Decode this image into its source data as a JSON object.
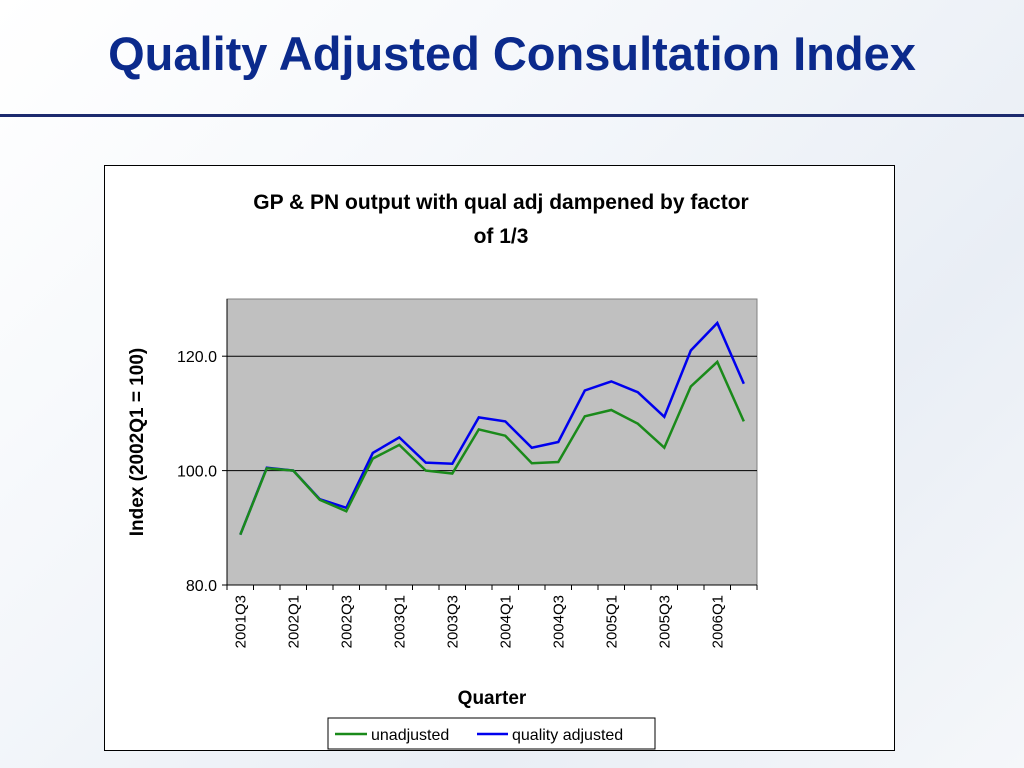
{
  "slide": {
    "title": "Quality Adjusted Consultation Index"
  },
  "colors": {
    "title": "#0b2a8c",
    "plot_background": "#c0c0c0",
    "unadjusted": "#1a8a1a",
    "quality_adjusted": "#0000ee"
  },
  "chart_data": {
    "type": "line",
    "title": "GP & PN output with qual adj dampened by factor of 1/3",
    "title_lines": [
      "GP & PN output with qual adj dampened by factor",
      "of 1/3"
    ],
    "xlabel": "Quarter",
    "ylabel": "Index (2002Q1 = 100)",
    "ylim": [
      80,
      130
    ],
    "yticks": [
      "80.0",
      "100.0",
      "120.0"
    ],
    "grid": true,
    "legend": "bottom",
    "x": [
      "2001Q3",
      "2001Q4",
      "2002Q1",
      "2002Q2",
      "2002Q3",
      "2002Q4",
      "2003Q1",
      "2003Q2",
      "2003Q3",
      "2003Q4",
      "2004Q1",
      "2004Q2",
      "2004Q3",
      "2004Q4",
      "2005Q1",
      "2005Q2",
      "2005Q3",
      "2005Q4",
      "2006Q1",
      "2006Q2"
    ],
    "xtick_labels": [
      "2001Q3",
      "",
      "2002Q1",
      "",
      "2002Q3",
      "",
      "2003Q1",
      "",
      "2003Q3",
      "",
      "2004Q1",
      "",
      "2004Q3",
      "",
      "2005Q1",
      "",
      "2005Q3",
      "",
      "2006Q1",
      ""
    ],
    "series": [
      {
        "name": "unadjusted",
        "values": [
          88.8,
          100.4,
          100.0,
          94.9,
          92.9,
          102.1,
          104.5,
          100.0,
          99.5,
          107.2,
          106.1,
          101.3,
          101.5,
          109.5,
          110.6,
          108.2,
          104.0,
          114.7,
          119.0,
          108.6
        ]
      },
      {
        "name": "quality adjusted",
        "values": [
          88.8,
          100.5,
          100.0,
          95.0,
          93.5,
          103.1,
          105.8,
          101.4,
          101.2,
          109.3,
          108.6,
          104.0,
          105.0,
          114.0,
          115.6,
          113.7,
          109.4,
          121.0,
          125.8,
          115.2
        ]
      }
    ]
  }
}
